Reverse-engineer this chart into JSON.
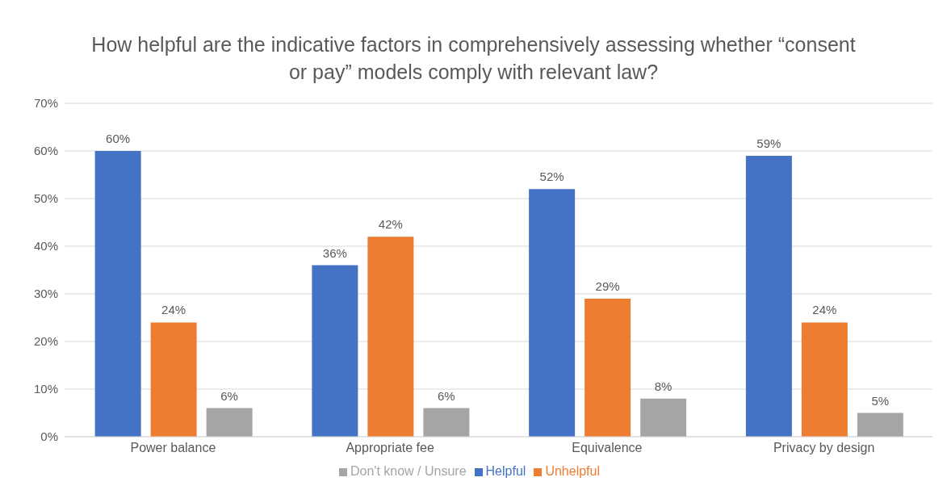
{
  "chart_data": {
    "type": "bar",
    "title": "How helpful are the indicative factors in comprehensively assessing whether “consent or pay” models comply with relevant law?",
    "categories": [
      "Power balance",
      "Appropriate fee",
      "Equivalence",
      "Privacy by design"
    ],
    "series": [
      {
        "name": "Helpful",
        "color": "#4472c4",
        "values": [
          60,
          36,
          52,
          59
        ],
        "value_labels": [
          "60%",
          "36%",
          "52%",
          "59%"
        ]
      },
      {
        "name": "Unhelpful",
        "color": "#ed7d31",
        "values": [
          24,
          42,
          29,
          24
        ],
        "value_labels": [
          "24%",
          "42%",
          "29%",
          "24%"
        ]
      },
      {
        "name": "Don't know / Unsure",
        "color": "#a5a5a5",
        "values": [
          6,
          6,
          8,
          5
        ],
        "value_labels": [
          "6%",
          "6%",
          "8%",
          "5%"
        ]
      }
    ],
    "ylim": [
      0,
      70
    ],
    "yticks": [
      {
        "value": 0,
        "label": "0%"
      },
      {
        "value": 10,
        "label": "10%"
      },
      {
        "value": 20,
        "label": "20%"
      },
      {
        "value": 30,
        "label": "30%"
      },
      {
        "value": 40,
        "label": "40%"
      },
      {
        "value": 50,
        "label": "50%"
      },
      {
        "value": 60,
        "label": "60%"
      },
      {
        "value": 70,
        "label": "70%"
      }
    ],
    "grid": "y",
    "legend": "bottom"
  }
}
